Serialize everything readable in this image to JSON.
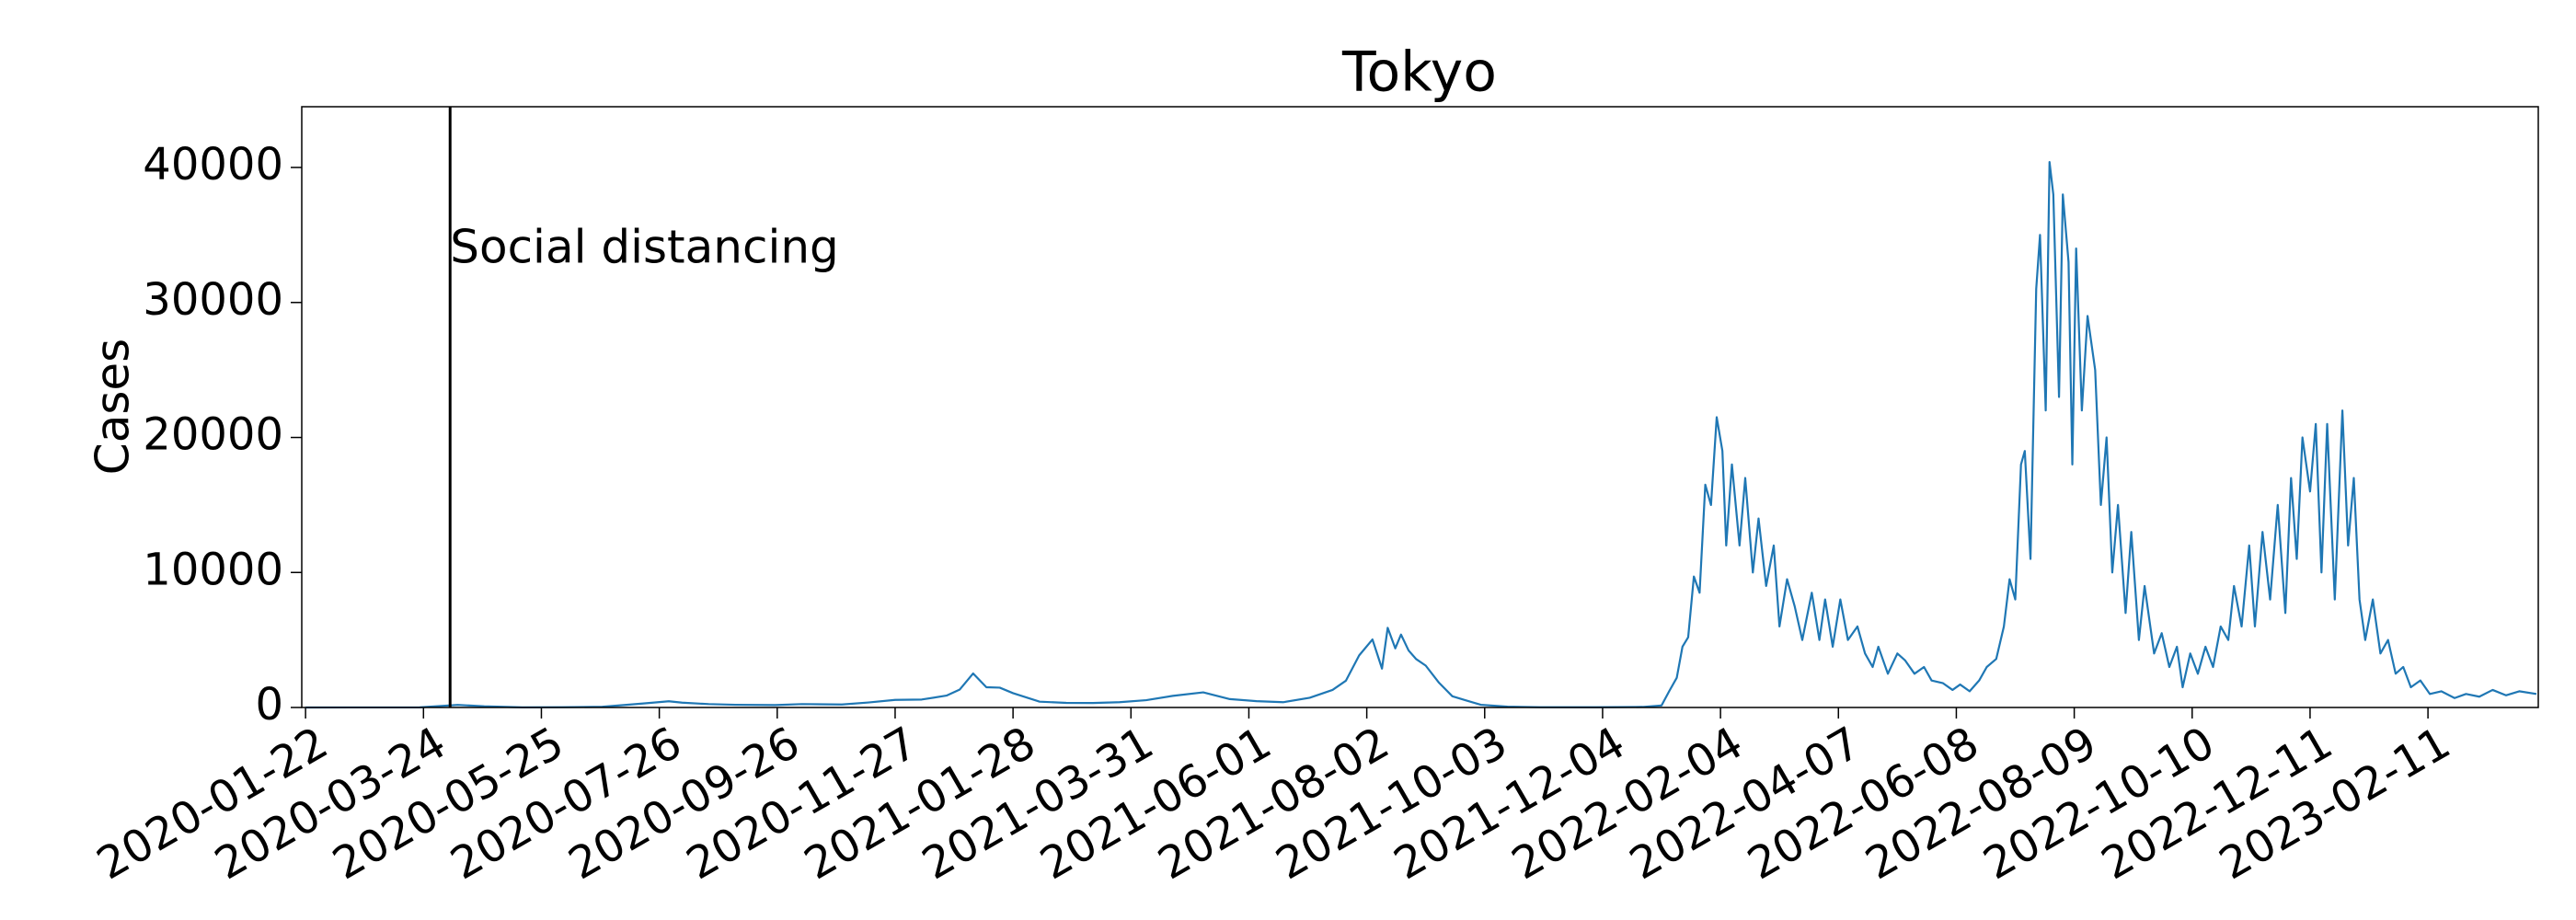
{
  "chart_data": {
    "type": "line",
    "title": "Tokyo",
    "ylabel": "Cases",
    "color": "#1f77b4",
    "x": [
      "2020-01-22",
      "2020-02-22",
      "2020-03-22",
      "2020-04-11",
      "2020-04-25",
      "2020-05-15",
      "2020-06-05",
      "2020-06-26",
      "2020-07-17",
      "2020-07-31",
      "2020-08-07",
      "2020-08-21",
      "2020-09-04",
      "2020-09-25",
      "2020-10-09",
      "2020-10-30",
      "2020-11-13",
      "2020-11-27",
      "2020-12-11",
      "2020-12-24",
      "2020-12-31",
      "2021-01-07",
      "2021-01-14",
      "2021-01-21",
      "2021-01-28",
      "2021-02-11",
      "2021-02-25",
      "2021-03-11",
      "2021-03-25",
      "2021-04-08",
      "2021-04-22",
      "2021-05-08",
      "2021-05-22",
      "2021-06-05",
      "2021-06-19",
      "2021-07-03",
      "2021-07-15",
      "2021-07-22",
      "2021-07-29",
      "2021-08-05",
      "2021-08-10",
      "2021-08-13",
      "2021-08-17",
      "2021-08-20",
      "2021-08-24",
      "2021-08-28",
      "2021-09-02",
      "2021-09-09",
      "2021-09-16",
      "2021-09-23",
      "2021-10-01",
      "2021-10-15",
      "2021-11-01",
      "2021-12-01",
      "2021-12-25",
      "2022-01-04",
      "2022-01-08",
      "2022-01-12",
      "2022-01-15",
      "2022-01-18",
      "2022-01-21",
      "2022-01-24",
      "2022-01-27",
      "2022-01-30",
      "2022-02-02",
      "2022-02-05",
      "2022-02-07",
      "2022-02-10",
      "2022-02-14",
      "2022-02-17",
      "2022-02-21",
      "2022-02-24",
      "2022-02-28",
      "2022-03-04",
      "2022-03-07",
      "2022-03-11",
      "2022-03-15",
      "2022-03-19",
      "2022-03-24",
      "2022-03-28",
      "2022-03-31",
      "2022-04-04",
      "2022-04-08",
      "2022-04-12",
      "2022-04-17",
      "2022-04-21",
      "2022-04-25",
      "2022-04-28",
      "2022-05-03",
      "2022-05-08",
      "2022-05-12",
      "2022-05-17",
      "2022-05-22",
      "2022-05-26",
      "2022-06-01",
      "2022-06-06",
      "2022-06-10",
      "2022-06-15",
      "2022-06-20",
      "2022-06-24",
      "2022-06-29",
      "2022-07-03",
      "2022-07-06",
      "2022-07-09",
      "2022-07-12",
      "2022-07-14",
      "2022-07-17",
      "2022-07-20",
      "2022-07-22",
      "2022-07-25",
      "2022-07-27",
      "2022-07-29",
      "2022-08-01",
      "2022-08-03",
      "2022-08-06",
      "2022-08-08",
      "2022-08-10",
      "2022-08-13",
      "2022-08-16",
      "2022-08-20",
      "2022-08-23",
      "2022-08-26",
      "2022-08-29",
      "2022-09-01",
      "2022-09-05",
      "2022-09-08",
      "2022-09-12",
      "2022-09-15",
      "2022-09-20",
      "2022-09-24",
      "2022-09-28",
      "2022-10-02",
      "2022-10-05",
      "2022-10-09",
      "2022-10-13",
      "2022-10-17",
      "2022-10-21",
      "2022-10-25",
      "2022-10-29",
      "2022-11-01",
      "2022-11-05",
      "2022-11-09",
      "2022-11-12",
      "2022-11-16",
      "2022-11-20",
      "2022-11-24",
      "2022-11-28",
      "2022-12-01",
      "2022-12-04",
      "2022-12-07",
      "2022-12-11",
      "2022-12-14",
      "2022-12-17",
      "2022-12-20",
      "2022-12-24",
      "2022-12-28",
      "2022-12-31",
      "2023-01-03",
      "2023-01-06",
      "2023-01-09",
      "2023-01-13",
      "2023-01-17",
      "2023-01-21",
      "2023-01-25",
      "2023-01-29",
      "2023-02-02",
      "2023-02-07",
      "2023-02-12",
      "2023-02-18",
      "2023-02-25",
      "2023-03-03",
      "2023-03-10",
      "2023-03-17",
      "2023-03-24",
      "2023-03-31",
      "2023-04-09"
    ],
    "values": [
      0,
      5,
      10,
      190,
      90,
      10,
      20,
      50,
      290,
      460,
      360,
      250,
      200,
      180,
      250,
      220,
      370,
      560,
      590,
      880,
      1330,
      2520,
      1500,
      1470,
      1060,
      430,
      340,
      330,
      390,
      540,
      860,
      1120,
      620,
      470,
      390,
      720,
      1300,
      1980,
      3860,
      5040,
      2880,
      5900,
      4380,
      5400,
      4220,
      3580,
      3100,
      1830,
      830,
      530,
      200,
      60,
      20,
      15,
      40,
      150,
      1200,
      2200,
      4500,
      5200,
      9700,
      8500,
      16500,
      15000,
      21500,
      19000,
      12000,
      18000,
      12000,
      17000,
      10000,
      14000,
      9000,
      12000,
      6000,
      9500,
      7500,
      5000,
      8500,
      5000,
      8000,
      4500,
      8000,
      5000,
      6000,
      4000,
      3000,
      4500,
      2500,
      4000,
      3500,
      2500,
      3000,
      2000,
      1800,
      1300,
      1700,
      1200,
      2000,
      3000,
      3600,
      6000,
      9500,
      8000,
      18000,
      19000,
      11000,
      31000,
      35000,
      22000,
      40400,
      38000,
      23000,
      38000,
      33000,
      18000,
      34000,
      22000,
      29000,
      25000,
      15000,
      20000,
      10000,
      15000,
      7000,
      13000,
      5000,
      9000,
      4000,
      5500,
      3000,
      4500,
      1500,
      4000,
      2500,
      4500,
      3000,
      6000,
      5000,
      9000,
      6000,
      12000,
      6000,
      13000,
      8000,
      15000,
      7000,
      17000,
      11000,
      20000,
      16000,
      21000,
      10000,
      21000,
      8000,
      22000,
      12000,
      17000,
      8000,
      5000,
      8000,
      4000,
      5000,
      2500,
      3000,
      1500,
      2000,
      1000,
      1200,
      700,
      1000,
      800,
      1300,
      900,
      1200,
      1000
    ],
    "xlim": [
      "2020-01-20",
      "2023-04-10"
    ],
    "xticks": [
      "2020-01-22",
      "2020-03-24",
      "2020-05-25",
      "2020-07-26",
      "2020-09-26",
      "2020-11-27",
      "2021-01-28",
      "2021-03-31",
      "2021-06-01",
      "2021-08-02",
      "2021-10-03",
      "2021-12-04",
      "2022-02-04",
      "2022-04-07",
      "2022-06-08",
      "2022-08-09",
      "2022-10-10",
      "2022-12-11",
      "2023-02-11"
    ],
    "ylim": [
      0,
      44500
    ],
    "yticks": [
      0,
      10000,
      20000,
      30000,
      40000
    ],
    "annotations": [
      {
        "x": "2020-04-07",
        "text": "Social distancing"
      }
    ]
  }
}
